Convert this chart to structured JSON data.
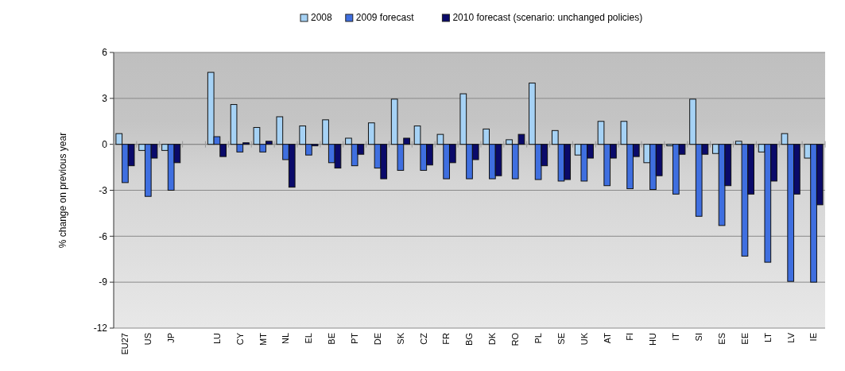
{
  "chart_data": {
    "type": "bar",
    "ylabel": "% change on previous year",
    "categories": [
      "EU27",
      "US",
      "JP",
      null,
      "LU",
      "CY",
      "MT",
      "NL",
      "EL",
      "BE",
      "PT",
      "DE",
      "SK",
      "CZ",
      "FR",
      "BG",
      "DK",
      "RO",
      "PL",
      "SE",
      "UK",
      "AT",
      "FI",
      "HU",
      "IT",
      "SI",
      "ES",
      "EE",
      "LT",
      "LV",
      "IE"
    ],
    "series": [
      {
        "name": "2008",
        "color": "#a6d2f5",
        "values": [
          0.7,
          -0.4,
          -0.4,
          null,
          4.7,
          2.6,
          1.1,
          1.8,
          1.2,
          1.6,
          0.4,
          1.4,
          2.95,
          1.2,
          0.65,
          3.3,
          1.0,
          0.3,
          4.0,
          0.9,
          -0.7,
          1.5,
          1.5,
          -1.2,
          -0.1,
          2.95,
          -0.6,
          0.2,
          -0.5,
          0.7,
          -0.9
        ]
      },
      {
        "name": "2009 forecast",
        "color": "#3f6fe0",
        "values": [
          -2.5,
          -3.4,
          -3.0,
          null,
          0.5,
          -0.5,
          -0.5,
          -1.0,
          -0.7,
          -1.2,
          -1.4,
          -1.55,
          -1.7,
          -1.7,
          -2.25,
          -2.25,
          -2.25,
          -2.25,
          -2.3,
          -2.4,
          -2.4,
          -2.7,
          -2.9,
          -2.95,
          -3.25,
          -4.7,
          -5.3,
          -7.3,
          -7.7,
          -8.95,
          -9.0
        ]
      },
      {
        "name": "2010 forecast (scenario: unchanged policies)",
        "color": "#0a0a6a",
        "values": [
          -1.4,
          -0.9,
          -1.2,
          null,
          -0.8,
          0.1,
          0.2,
          -2.8,
          -0.1,
          -1.55,
          -0.65,
          -2.25,
          0.4,
          -1.35,
          -1.2,
          -1.0,
          -2.05,
          0.65,
          -1.4,
          -2.3,
          -0.9,
          -0.9,
          -0.8,
          -2.05,
          -0.65,
          -0.65,
          -2.7,
          -3.25,
          -2.4,
          -3.25,
          -3.95
        ]
      }
    ],
    "ylim": [
      -12,
      6
    ],
    "yticks": [
      -12,
      -9,
      -6,
      -3,
      0,
      3,
      6
    ],
    "grid": "y",
    "legend": "top"
  }
}
